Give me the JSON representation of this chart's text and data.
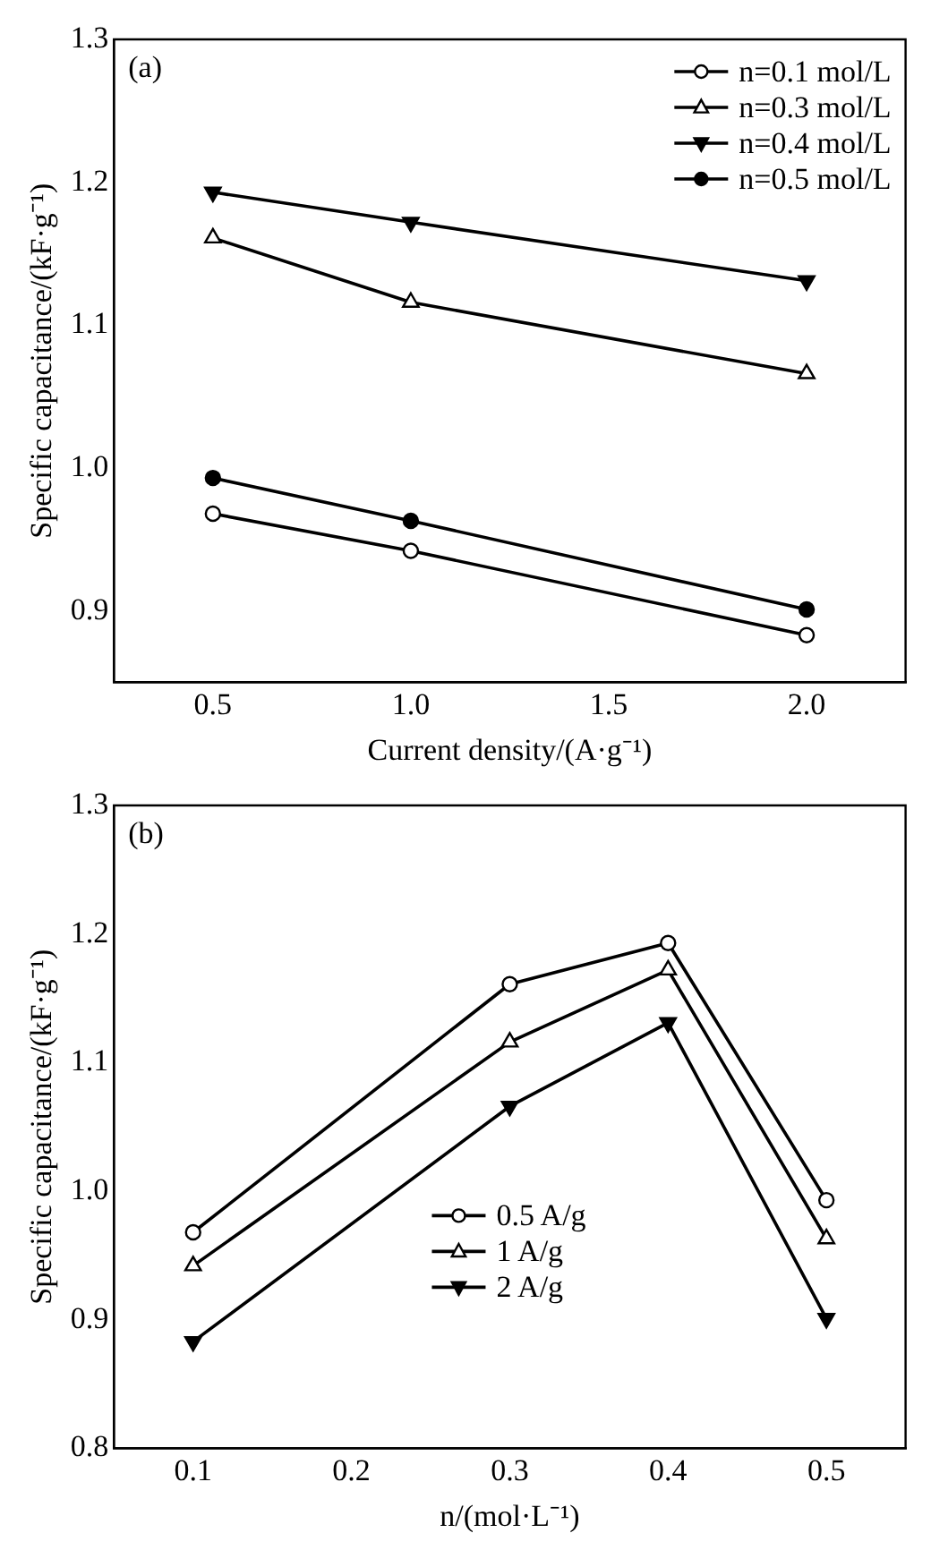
{
  "chart_data": [
    {
      "type": "line",
      "xlabel": "Current density/(A·g⁻¹)",
      "ylabel": "Specific capacitance/(kF·g⁻¹)",
      "annotations": [
        "(a)"
      ],
      "x": [
        0.5,
        1.0,
        2.0
      ],
      "xlim": [
        0.25,
        2.25
      ],
      "xticks": [
        0.5,
        {
          "value": 1,
          "label": "1.0"
        },
        1.5,
        {
          "value": 2,
          "label": "2.0"
        }
      ],
      "ylim": [
        0.85,
        1.3
      ],
      "yticks": [
        0.9,
        {
          "value": 1,
          "label": "1.0"
        },
        1.1,
        1.2,
        1.3
      ],
      "legend": "top right",
      "series": [
        {
          "name": "n=0.1 mol/L",
          "color": "#000000",
          "marker": "circle-open",
          "values": [
            0.968,
            0.942,
            0.883
          ]
        },
        {
          "name": "n=0.3 mol/L",
          "color": "#000000",
          "marker": "triangle-open",
          "values": [
            1.161,
            1.116,
            1.066
          ]
        },
        {
          "name": "n=0.4 mol/L",
          "color": "#000000",
          "marker": "triangle-down",
          "values": [
            1.193,
            1.172,
            1.131
          ]
        },
        {
          "name": "n=0.5 mol/L",
          "color": "#000000",
          "marker": "circle",
          "values": [
            0.993,
            0.963,
            0.901
          ]
        }
      ]
    },
    {
      "type": "line",
      "xlabel": "n/(mol·L⁻¹)",
      "ylabel": "Specific capacitance/(kF·g⁻¹)",
      "annotations": [
        "(b)"
      ],
      "x": [
        0.1,
        0.3,
        0.4,
        0.5
      ],
      "xlim": [
        0.05,
        0.55
      ],
      "xticks": [
        0.1,
        0.2,
        0.3,
        0.4,
        0.5
      ],
      "ylim": [
        0.8,
        1.3
      ],
      "yticks": [
        0.8,
        0.9,
        {
          "value": 1,
          "label": "1.0"
        },
        1.1,
        1.2,
        1.3
      ],
      "legend": "bottom",
      "series": [
        {
          "name": "0.5 A/g",
          "color": "#000000",
          "marker": "circle-open",
          "values": [
            0.968,
            1.161,
            1.193,
            0.993
          ]
        },
        {
          "name": "1 A/g",
          "color": "#000000",
          "marker": "triangle-open",
          "values": [
            0.942,
            1.116,
            1.172,
            0.963
          ]
        },
        {
          "name": "2 A/g",
          "color": "#000000",
          "marker": "triangle-down",
          "values": [
            0.883,
            1.066,
            1.131,
            0.901
          ]
        }
      ]
    }
  ]
}
